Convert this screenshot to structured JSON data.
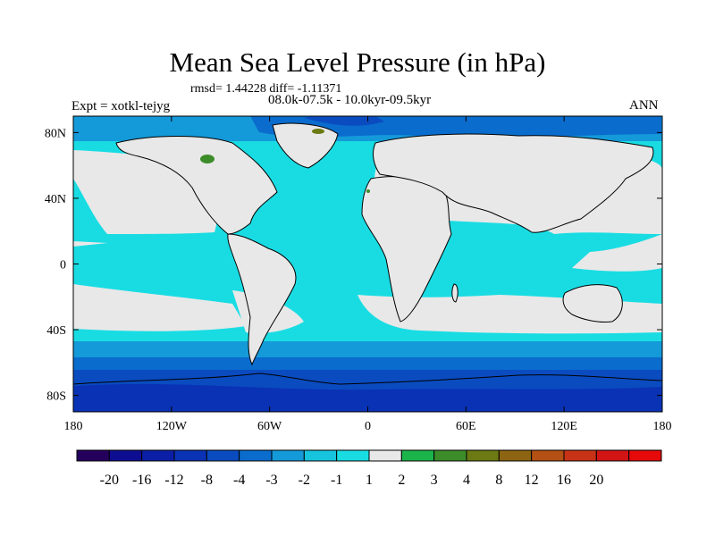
{
  "title": "Mean Sea Level Pressure (in hPa)",
  "stats_line": "rmsd= 1.44228 diff= -1.11371",
  "period_line": "08.0k-07.5k - 10.0kyr-09.5kyr",
  "experiment_label": "Expt = xotkl-tejyg",
  "season_label": "ANN",
  "axes": {
    "lon_ticks": [
      {
        "value": -180,
        "label": "180"
      },
      {
        "value": -120,
        "label": "120W"
      },
      {
        "value": -60,
        "label": "60W"
      },
      {
        "value": 0,
        "label": "0"
      },
      {
        "value": 60,
        "label": "60E"
      },
      {
        "value": 120,
        "label": "120E"
      },
      {
        "value": 180,
        "label": "180"
      }
    ],
    "lat_ticks": [
      {
        "value": 80,
        "label": "80N"
      },
      {
        "value": 40,
        "label": "40N"
      },
      {
        "value": 0,
        "label": "0"
      },
      {
        "value": -40,
        "label": "40S"
      },
      {
        "value": -80,
        "label": "80S"
      }
    ],
    "lon_range": [
      -180,
      180
    ],
    "lat_range": [
      -90,
      90
    ]
  },
  "colorbar": {
    "colors": [
      "#24005c",
      "#0d0d91",
      "#0a1ea6",
      "#0a32b4",
      "#0a4bc0",
      "#0a6ccd",
      "#1499d9",
      "#16c4de",
      "#19dce3",
      "#e8e8e8",
      "#1bb44a",
      "#3c8c2a",
      "#6b7a12",
      "#8c6412",
      "#b45014",
      "#c83216",
      "#d21414",
      "#e60a0a"
    ],
    "labels": [
      "-20",
      "-16",
      "-12",
      "-8",
      "-4",
      "-3",
      "-2",
      "-1",
      "1",
      "2",
      "3",
      "4",
      "8",
      "12",
      "16",
      "20"
    ]
  }
}
